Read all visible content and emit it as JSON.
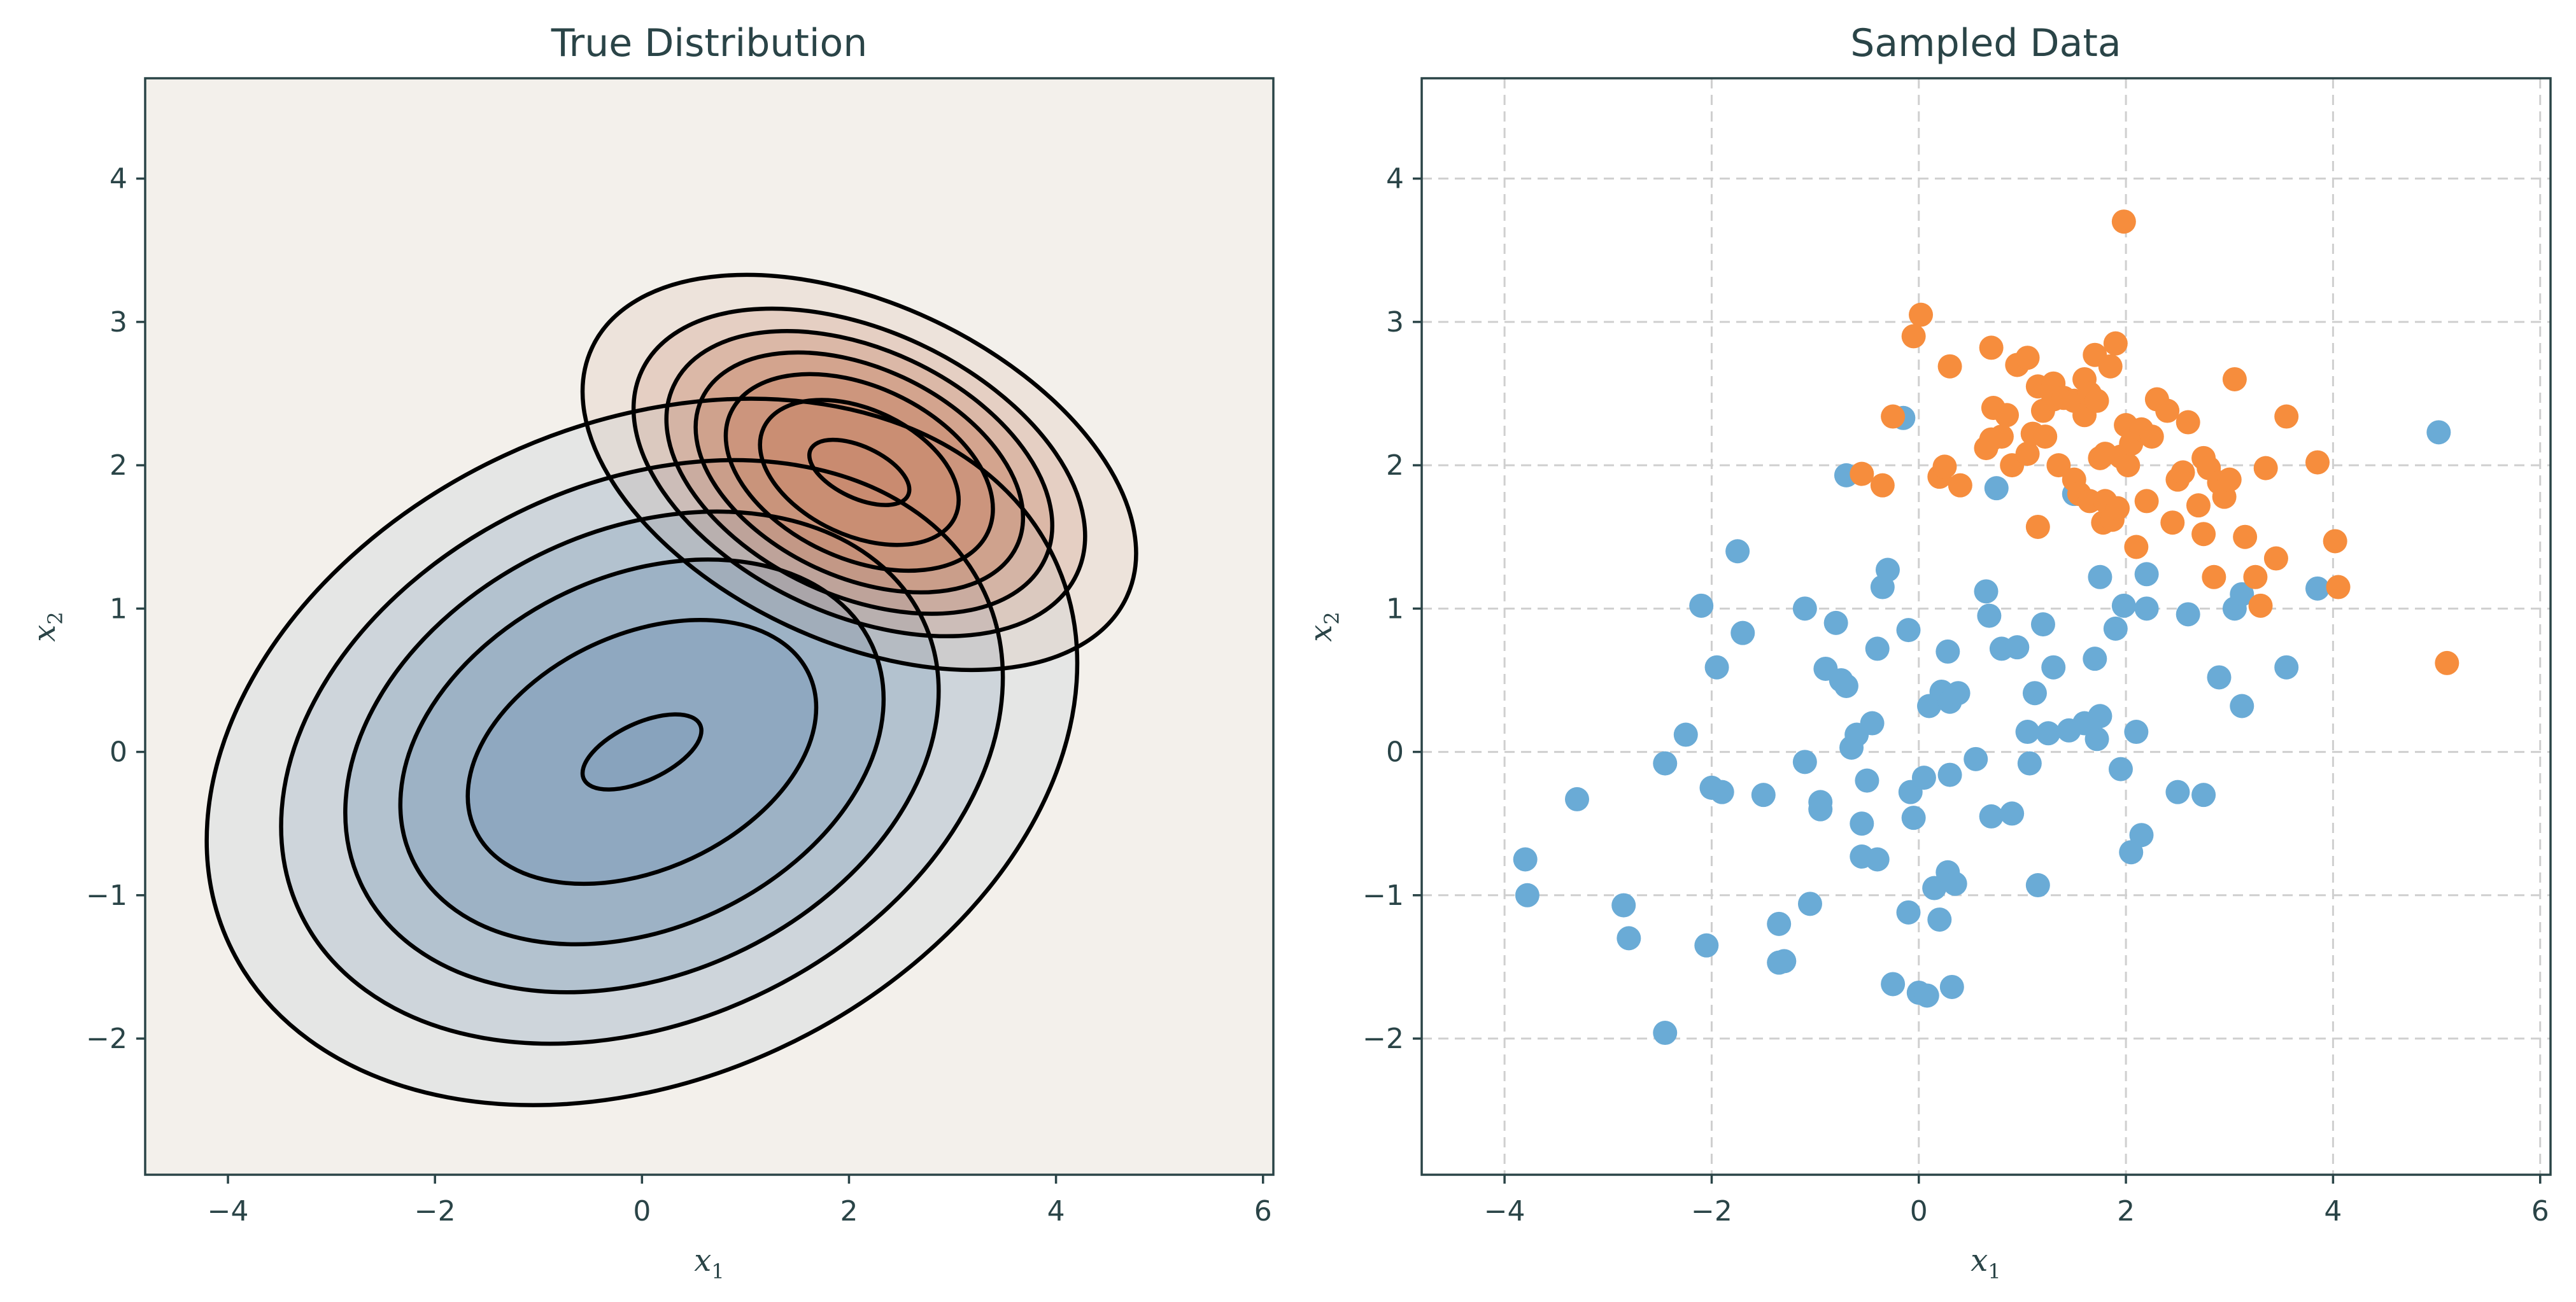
{
  "chart_data": [
    {
      "type": "contour",
      "title": "True Distribution",
      "xlabel_base": "x",
      "xlabel_sub": "1",
      "ylabel_base": "x",
      "ylabel_sub": "2",
      "xlim": [
        -4.8,
        6.1
      ],
      "ylim": [
        -2.95,
        4.7
      ],
      "xticks": [
        -4,
        -2,
        0,
        2,
        4,
        6
      ],
      "yticks": [
        -2,
        -1,
        0,
        1,
        2,
        3,
        4
      ],
      "xtick_labels": [
        "−4",
        "−2",
        "0",
        "2",
        "4",
        "6"
      ],
      "ytick_labels": [
        "−2",
        "−1",
        "0",
        "1",
        "2",
        "3",
        "4"
      ],
      "background_color": "#f3f0eb",
      "grid": false,
      "components": [
        {
          "name": "",
          "mean": [
            0,
            0
          ],
          "color": "#3d78a8",
          "fill_color": "#86a2bc",
          "levels": [
            {
              "radii": [
                0.62,
                0.2
              ]
            },
            {
              "radii": [
                1.78,
                0.82
              ]
            },
            {
              "radii": [
                2.45,
                1.23
              ]
            },
            {
              "radii": [
                3.0,
                1.55
              ]
            },
            {
              "radii": [
                3.65,
                1.88
              ]
            },
            {
              "radii": [
                4.4,
                2.28
              ]
            }
          ],
          "angle_deg": 25
        },
        {
          "name": "",
          "mean": [
            2.1,
            1.95
          ],
          "color": "#d2693a",
          "fill_color": "#c98a6e",
          "levels": [
            {
              "radii": [
                0.52,
                0.18
              ]
            },
            {
              "radii": [
                1.02,
                0.44
              ]
            },
            {
              "radii": [
                1.37,
                0.6
              ]
            },
            {
              "radii": [
                1.68,
                0.73
              ]
            },
            {
              "radii": [
                1.98,
                0.86
              ]
            },
            {
              "radii": [
                2.32,
                0.99
              ]
            },
            {
              "radii": [
                2.85,
                1.18
              ]
            }
          ],
          "angle_deg": -25
        }
      ]
    },
    {
      "type": "scatter",
      "title": "Sampled Data",
      "xlabel_base": "x",
      "xlabel_sub": "1",
      "ylabel_base": "x",
      "ylabel_sub": "2",
      "xlim": [
        -4.8,
        6.1
      ],
      "ylim": [
        -2.95,
        4.7
      ],
      "xticks": [
        -4,
        -2,
        0,
        2,
        4,
        6
      ],
      "yticks": [
        -2,
        -1,
        0,
        1,
        2,
        3,
        4
      ],
      "xtick_labels": [
        "−4",
        "−2",
        "0",
        "2",
        "4",
        "6"
      ],
      "ytick_labels": [
        "−2",
        "−1",
        "0",
        "1",
        "2",
        "3",
        "4"
      ],
      "grid": true,
      "series": [
        {
          "name": "",
          "color": "#6aabd6",
          "points": [
            [
              -3.8,
              -0.75
            ],
            [
              -3.78,
              -1.0
            ],
            [
              -3.3,
              -0.33
            ],
            [
              -2.85,
              -1.07
            ],
            [
              -2.8,
              -1.3
            ],
            [
              -2.45,
              -1.96
            ],
            [
              -2.45,
              -0.08
            ],
            [
              -2.25,
              0.12
            ],
            [
              -2.1,
              1.02
            ],
            [
              -2.05,
              -1.35
            ],
            [
              -2.0,
              -0.25
            ],
            [
              -1.95,
              0.59
            ],
            [
              -1.9,
              -0.28
            ],
            [
              -1.75,
              1.4
            ],
            [
              -1.7,
              0.83
            ],
            [
              -1.5,
              -0.3
            ],
            [
              -1.35,
              -1.2
            ],
            [
              -1.3,
              -1.46
            ],
            [
              -1.35,
              -1.47
            ],
            [
              -1.1,
              -0.07
            ],
            [
              -1.1,
              1.0
            ],
            [
              -1.05,
              -1.06
            ],
            [
              -0.95,
              -0.35
            ],
            [
              -0.95,
              -0.4
            ],
            [
              -0.9,
              0.58
            ],
            [
              -0.8,
              0.9
            ],
            [
              -0.75,
              0.5
            ],
            [
              -0.7,
              0.46
            ],
            [
              -0.7,
              1.93
            ],
            [
              -0.65,
              0.03
            ],
            [
              -0.6,
              0.12
            ],
            [
              -0.55,
              -0.5
            ],
            [
              -0.55,
              -0.73
            ],
            [
              -0.5,
              -0.2
            ],
            [
              -0.45,
              0.2
            ],
            [
              -0.4,
              -0.75
            ],
            [
              -0.4,
              0.72
            ],
            [
              -0.35,
              1.15
            ],
            [
              -0.3,
              1.27
            ],
            [
              -0.25,
              -1.62
            ],
            [
              -0.15,
              2.33
            ],
            [
              -0.1,
              -1.12
            ],
            [
              -0.1,
              0.85
            ],
            [
              -0.08,
              -0.28
            ],
            [
              -0.05,
              -0.46
            ],
            [
              0.0,
              -1.68
            ],
            [
              0.05,
              -0.18
            ],
            [
              0.08,
              -1.7
            ],
            [
              0.1,
              0.32
            ],
            [
              0.15,
              -0.95
            ],
            [
              0.2,
              -1.17
            ],
            [
              0.22,
              0.42
            ],
            [
              0.28,
              -0.84
            ],
            [
              0.28,
              0.7
            ],
            [
              0.3,
              0.35
            ],
            [
              0.3,
              -0.16
            ],
            [
              0.32,
              -1.64
            ],
            [
              0.35,
              -0.92
            ],
            [
              0.38,
              0.41
            ],
            [
              0.55,
              -0.05
            ],
            [
              0.65,
              1.12
            ],
            [
              0.68,
              0.95
            ],
            [
              0.7,
              -0.45
            ],
            [
              0.75,
              1.84
            ],
            [
              0.8,
              0.72
            ],
            [
              0.9,
              -0.43
            ],
            [
              0.95,
              0.73
            ],
            [
              1.05,
              0.14
            ],
            [
              1.07,
              -0.08
            ],
            [
              1.12,
              0.41
            ],
            [
              1.15,
              -0.93
            ],
            [
              1.2,
              0.89
            ],
            [
              1.25,
              0.13
            ],
            [
              1.3,
              0.59
            ],
            [
              1.45,
              0.15
            ],
            [
              1.5,
              1.8
            ],
            [
              1.6,
              0.2
            ],
            [
              1.7,
              0.65
            ],
            [
              1.72,
              0.09
            ],
            [
              1.75,
              1.22
            ],
            [
              1.75,
              0.25
            ],
            [
              1.9,
              0.86
            ],
            [
              1.95,
              -0.12
            ],
            [
              1.98,
              1.02
            ],
            [
              2.05,
              -0.7
            ],
            [
              2.1,
              0.14
            ],
            [
              2.15,
              -0.58
            ],
            [
              2.2,
              1.24
            ],
            [
              2.2,
              1.0
            ],
            [
              2.5,
              -0.28
            ],
            [
              2.6,
              0.96
            ],
            [
              2.75,
              -0.3
            ],
            [
              2.9,
              0.52
            ],
            [
              3.05,
              1.0
            ],
            [
              3.12,
              1.1
            ],
            [
              3.12,
              0.32
            ],
            [
              3.55,
              0.59
            ],
            [
              3.85,
              1.14
            ],
            [
              5.02,
              2.23
            ]
          ]
        },
        {
          "name": "",
          "color": "#f68d3d",
          "points": [
            [
              -0.55,
              1.94
            ],
            [
              -0.35,
              1.86
            ],
            [
              -0.25,
              2.34
            ],
            [
              -0.05,
              2.9
            ],
            [
              0.02,
              3.05
            ],
            [
              0.2,
              1.92
            ],
            [
              0.25,
              1.99
            ],
            [
              0.3,
              2.69
            ],
            [
              0.4,
              1.86
            ],
            [
              0.65,
              2.12
            ],
            [
              0.7,
              2.82
            ],
            [
              0.7,
              2.18
            ],
            [
              0.72,
              2.4
            ],
            [
              0.8,
              2.2
            ],
            [
              0.85,
              2.35
            ],
            [
              0.9,
              2.0
            ],
            [
              0.95,
              2.7
            ],
            [
              1.05,
              2.08
            ],
            [
              1.05,
              2.75
            ],
            [
              1.1,
              2.22
            ],
            [
              1.15,
              2.55
            ],
            [
              1.15,
              1.57
            ],
            [
              1.2,
              2.38
            ],
            [
              1.22,
              2.2
            ],
            [
              1.3,
              2.57
            ],
            [
              1.3,
              2.46
            ],
            [
              1.35,
              2.0
            ],
            [
              1.4,
              2.47
            ],
            [
              1.5,
              2.45
            ],
            [
              1.5,
              1.9
            ],
            [
              1.55,
              1.8
            ],
            [
              1.6,
              2.6
            ],
            [
              1.6,
              2.35
            ],
            [
              1.65,
              2.5
            ],
            [
              1.65,
              1.75
            ],
            [
              1.7,
              2.77
            ],
            [
              1.72,
              2.45
            ],
            [
              1.75,
              2.05
            ],
            [
              1.78,
              1.6
            ],
            [
              1.8,
              2.08
            ],
            [
              1.8,
              1.75
            ],
            [
              1.85,
              2.69
            ],
            [
              1.87,
              1.62
            ],
            [
              1.9,
              2.85
            ],
            [
              1.92,
              1.7
            ],
            [
              1.95,
              2.06
            ],
            [
              1.98,
              3.7
            ],
            [
              2.0,
              2.28
            ],
            [
              2.02,
              2.0
            ],
            [
              2.05,
              2.15
            ],
            [
              2.1,
              1.43
            ],
            [
              2.15,
              2.25
            ],
            [
              2.2,
              1.75
            ],
            [
              2.25,
              2.2
            ],
            [
              2.3,
              2.46
            ],
            [
              2.4,
              2.38
            ],
            [
              2.45,
              1.6
            ],
            [
              2.5,
              1.9
            ],
            [
              2.55,
              1.95
            ],
            [
              2.6,
              2.3
            ],
            [
              2.7,
              1.72
            ],
            [
              2.75,
              1.52
            ],
            [
              2.75,
              2.05
            ],
            [
              2.8,
              1.98
            ],
            [
              2.85,
              1.22
            ],
            [
              2.9,
              1.88
            ],
            [
              2.95,
              1.78
            ],
            [
              3.0,
              1.9
            ],
            [
              3.05,
              2.6
            ],
            [
              3.15,
              1.5
            ],
            [
              3.25,
              1.22
            ],
            [
              3.3,
              1.02
            ],
            [
              3.35,
              1.98
            ],
            [
              3.45,
              1.35
            ],
            [
              3.55,
              2.34
            ],
            [
              3.85,
              2.02
            ],
            [
              4.02,
              1.47
            ],
            [
              4.05,
              1.15
            ],
            [
              5.1,
              0.62
            ]
          ]
        }
      ]
    }
  ]
}
